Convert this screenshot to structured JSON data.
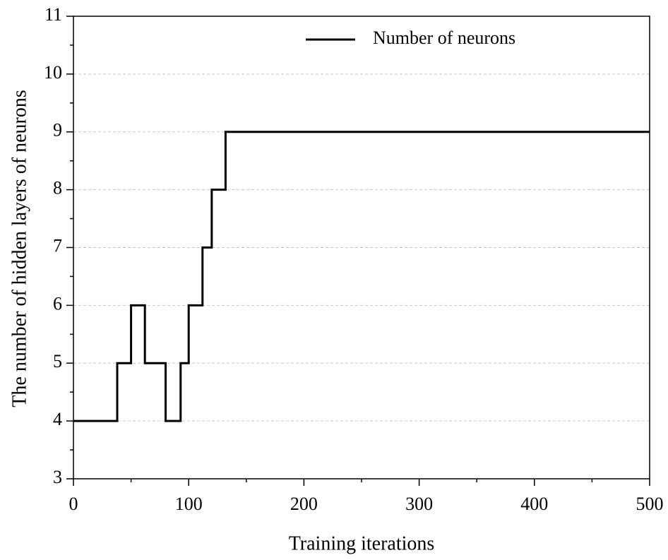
{
  "chart_data": {
    "type": "line",
    "xlabel": "Training iterations",
    "ylabel": "The number of hidden layers of neurons",
    "x": [
      0,
      38,
      38,
      50,
      50,
      62,
      62,
      80,
      80,
      93,
      93,
      100,
      100,
      112,
      112,
      120,
      120,
      132,
      132,
      500
    ],
    "series": [
      {
        "name": "Number of neurons",
        "color": "#000000",
        "values": [
          4,
          4,
          5,
          5,
          6,
          6,
          5,
          5,
          4,
          4,
          5,
          5,
          6,
          6,
          7,
          7,
          8,
          8,
          9,
          9
        ]
      }
    ],
    "xlim": [
      0,
      500
    ],
    "xticks": [
      0,
      100,
      200,
      300,
      400,
      500
    ],
    "xminorticks": [
      50,
      150,
      250,
      350,
      450
    ],
    "ylim": [
      3,
      11
    ],
    "yticks": [
      3,
      4,
      5,
      6,
      7,
      8,
      9,
      10,
      11
    ],
    "yminorticks": [
      3.5,
      4.5,
      5.5,
      6.5,
      7.5,
      8.5,
      9.5,
      10.5
    ],
    "grid": true,
    "legend": "upper-right"
  }
}
